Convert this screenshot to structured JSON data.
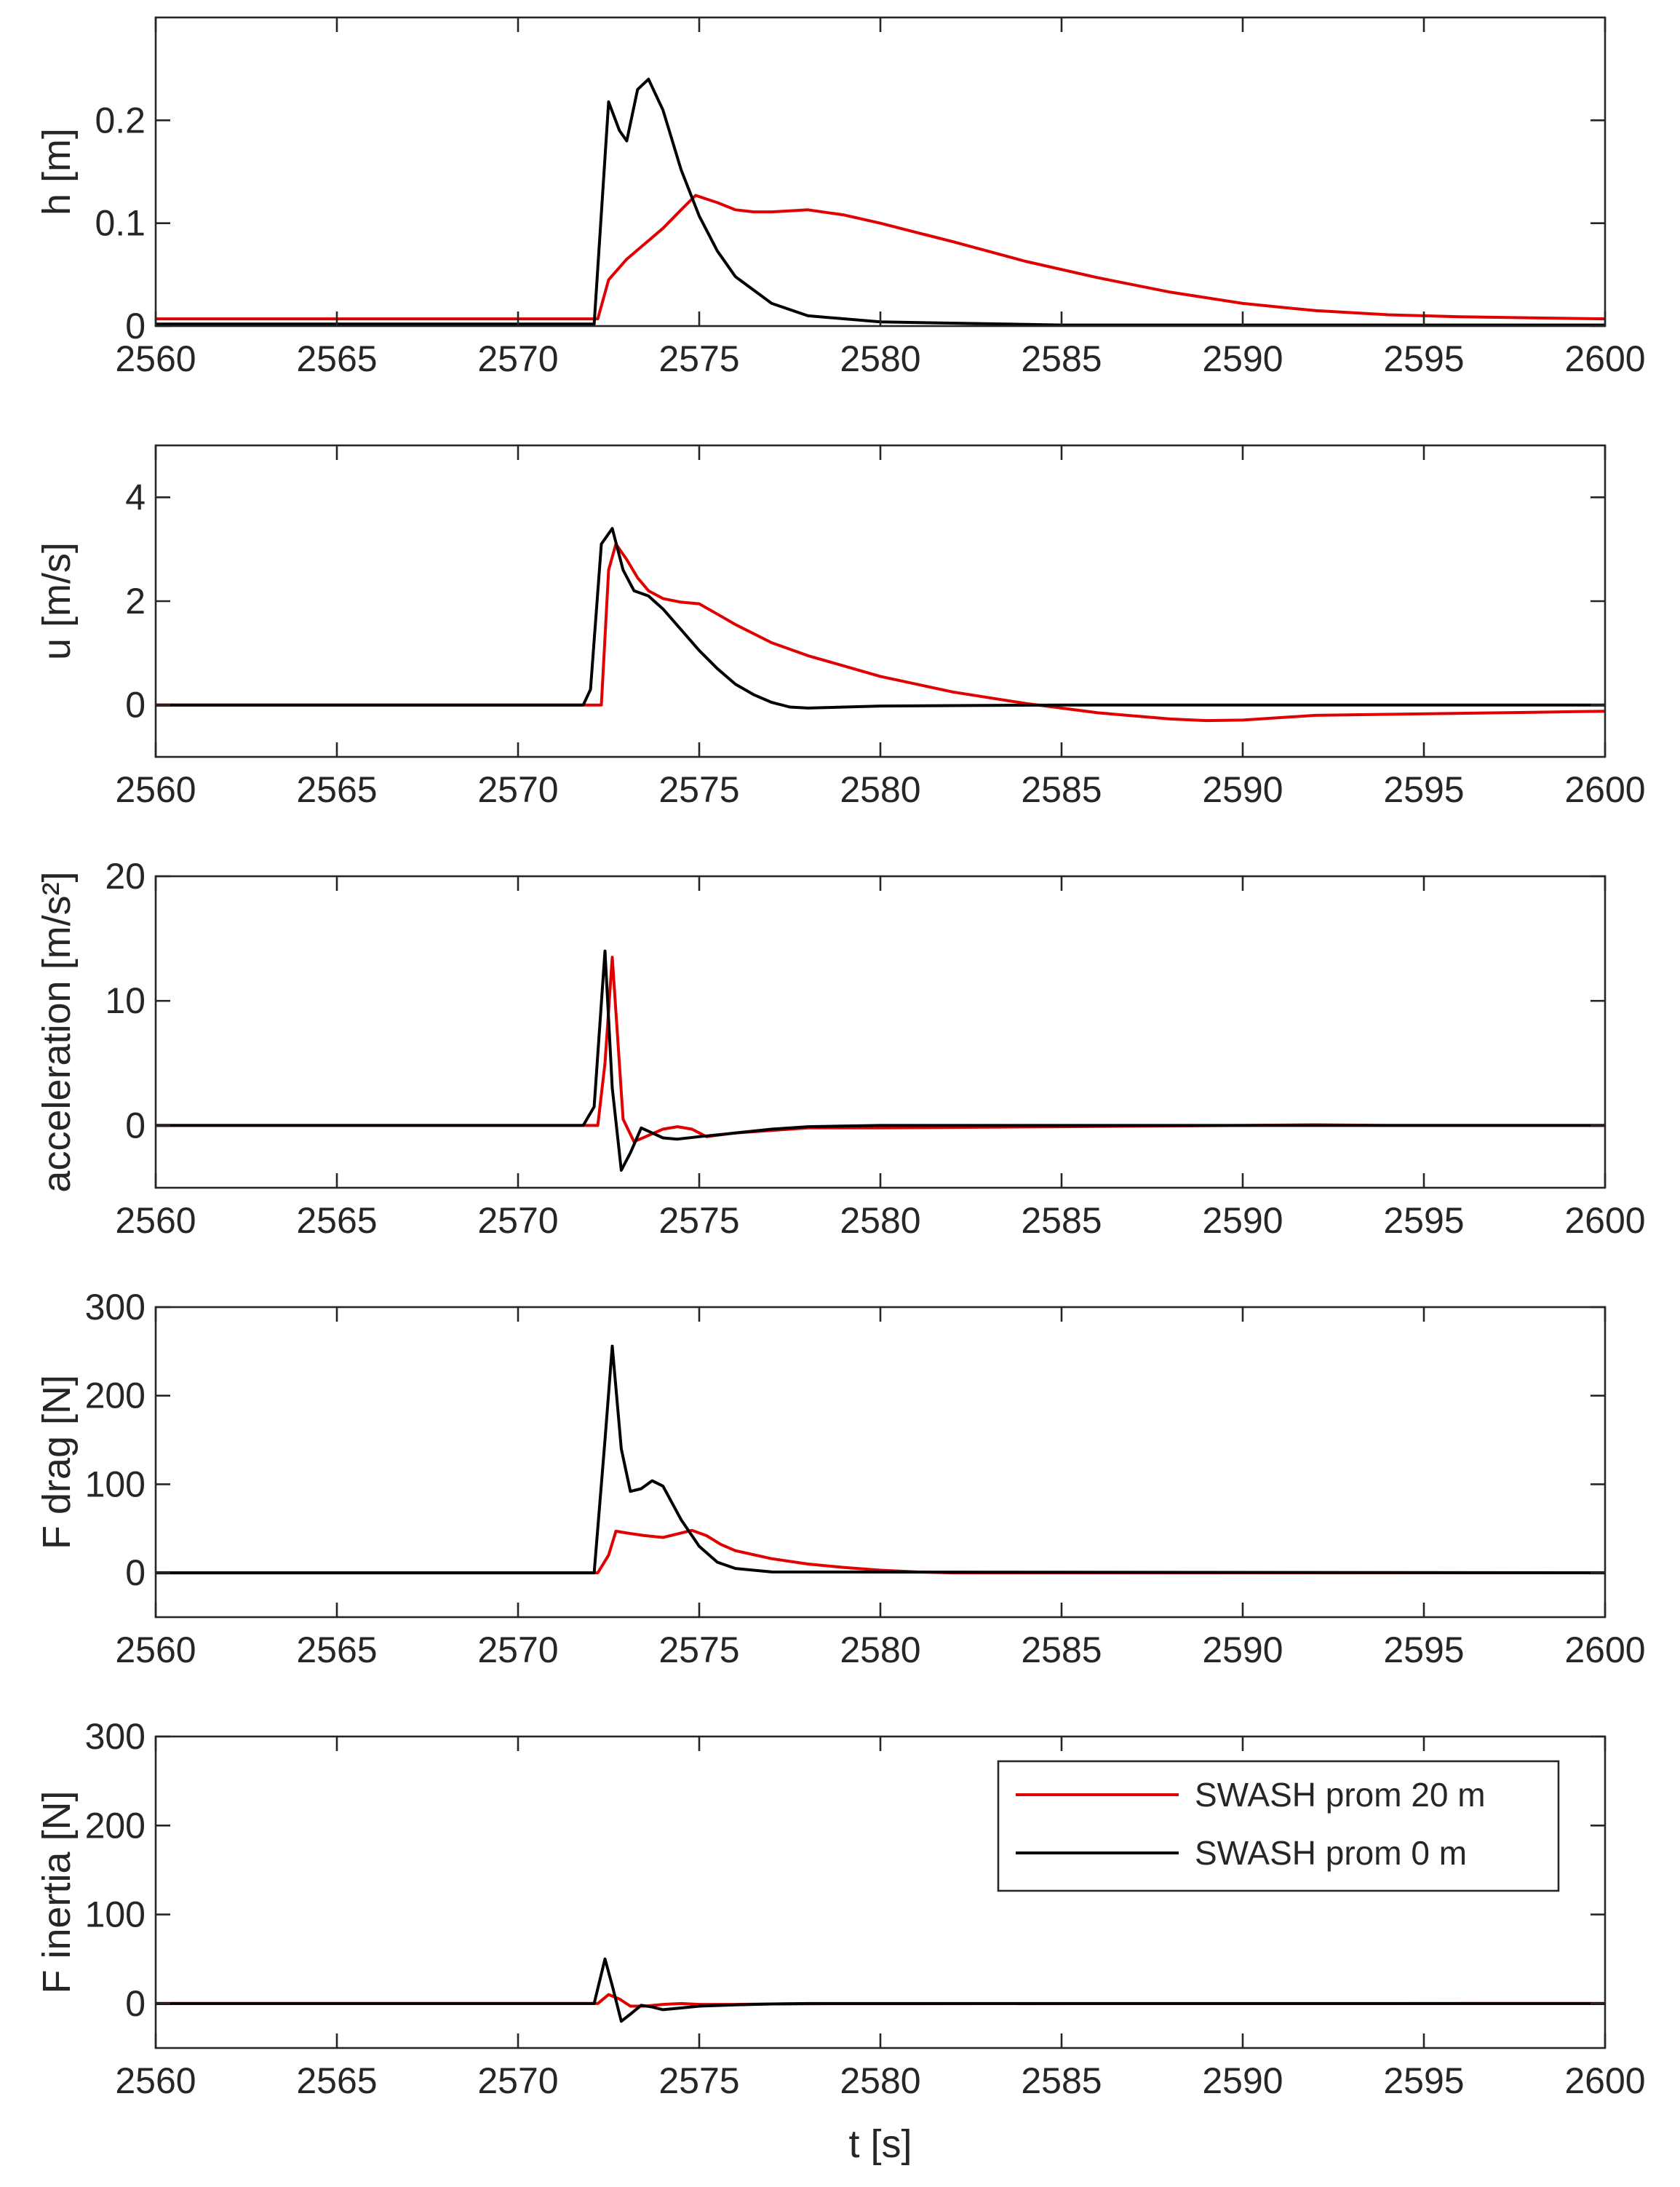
{
  "colors": {
    "red": "#e00000",
    "black": "#000000",
    "axis": "#262626"
  },
  "chart_data": [
    {
      "type": "line",
      "ylabel": "h [m]",
      "xlabel": "",
      "xlim": [
        2560,
        2600
      ],
      "ylim": [
        0,
        0.3
      ],
      "xticks": [
        "2560",
        "2565",
        "2570",
        "2575",
        "2580",
        "2585",
        "2590",
        "2595",
        "2600"
      ],
      "yticks": [
        {
          "v": 0,
          "label": "0"
        },
        {
          "v": 0.1,
          "label": "0.1"
        },
        {
          "v": 0.2,
          "label": "0.2"
        }
      ],
      "series": [
        {
          "name": "SWASH prom 20 m",
          "color": "#e00000",
          "x": [
            2560,
            2572.2,
            2572.5,
            2573,
            2573.5,
            2574,
            2574.5,
            2574.9,
            2575.5,
            2576,
            2576.5,
            2577,
            2577.5,
            2578,
            2579,
            2580,
            2582,
            2584,
            2586,
            2588,
            2590,
            2592,
            2594,
            2596,
            2598,
            2600
          ],
          "y": [
            0.007,
            0.007,
            0.045,
            0.065,
            0.08,
            0.095,
            0.113,
            0.127,
            0.12,
            0.113,
            0.111,
            0.111,
            0.112,
            0.113,
            0.108,
            0.1,
            0.082,
            0.063,
            0.047,
            0.033,
            0.022,
            0.015,
            0.011,
            0.009,
            0.008,
            0.007
          ]
        },
        {
          "name": "SWASH prom 0 m",
          "color": "#000000",
          "x": [
            2560,
            2572.1,
            2572.5,
            2572.8,
            2573,
            2573.3,
            2573.6,
            2574,
            2574.5,
            2575,
            2575.5,
            2576,
            2577,
            2578,
            2580,
            2585,
            2590,
            2600
          ],
          "y": [
            0.002,
            0.002,
            0.218,
            0.19,
            0.18,
            0.23,
            0.24,
            0.21,
            0.152,
            0.107,
            0.073,
            0.048,
            0.022,
            0.01,
            0.004,
            0.001,
            0.001,
            0.001
          ]
        }
      ]
    },
    {
      "type": "line",
      "ylabel": "u [m/s]",
      "xlabel": "",
      "xlim": [
        2560,
        2600
      ],
      "ylim": [
        -1,
        5
      ],
      "xticks": [
        "2560",
        "2565",
        "2570",
        "2575",
        "2580",
        "2585",
        "2590",
        "2595",
        "2600"
      ],
      "yticks": [
        {
          "v": 0,
          "label": "0"
        },
        {
          "v": 2,
          "label": "2"
        },
        {
          "v": 4,
          "label": "4"
        }
      ],
      "series": [
        {
          "name": "SWASH prom 20 m",
          "color": "#e00000",
          "x": [
            2560,
            2572.1,
            2572.3,
            2572.5,
            2572.7,
            2573,
            2573.3,
            2573.6,
            2574,
            2574.5,
            2575,
            2575.5,
            2576,
            2577,
            2578,
            2580,
            2582,
            2584,
            2586,
            2588,
            2589,
            2590,
            2592,
            2594,
            2596,
            2598,
            2600
          ],
          "y": [
            0,
            0,
            0,
            2.6,
            3.1,
            2.8,
            2.45,
            2.2,
            2.05,
            1.98,
            1.95,
            1.75,
            1.55,
            1.2,
            0.95,
            0.55,
            0.25,
            0.03,
            -0.15,
            -0.27,
            -0.3,
            -0.29,
            -0.2,
            -0.18,
            -0.16,
            -0.14,
            -0.12
          ]
        },
        {
          "name": "SWASH prom 0 m",
          "color": "#000000",
          "x": [
            2560,
            2571.8,
            2572,
            2572.3,
            2572.6,
            2572.9,
            2573.2,
            2573.6,
            2574,
            2574.5,
            2575,
            2575.5,
            2576,
            2576.5,
            2577,
            2577.5,
            2578,
            2579,
            2580,
            2585,
            2600
          ],
          "y": [
            0,
            0,
            0.3,
            3.1,
            3.4,
            2.6,
            2.2,
            2.1,
            1.85,
            1.45,
            1.05,
            0.7,
            0.4,
            0.2,
            0.05,
            -0.04,
            -0.06,
            -0.04,
            -0.02,
            0,
            0
          ]
        }
      ]
    },
    {
      "type": "line",
      "ylabel": "acceleration [m/s²]",
      "xlabel": "",
      "xlim": [
        2560,
        2600
      ],
      "ylim": [
        -5,
        20
      ],
      "xticks": [
        "2560",
        "2565",
        "2570",
        "2575",
        "2580",
        "2585",
        "2590",
        "2595",
        "2600"
      ],
      "yticks": [
        {
          "v": 0,
          "label": "0"
        },
        {
          "v": 10,
          "label": "10"
        },
        {
          "v": 20,
          "label": "20"
        }
      ],
      "series": [
        {
          "name": "SWASH prom 20 m",
          "color": "#e00000",
          "x": [
            2560,
            2572.2,
            2572.4,
            2572.6,
            2572.9,
            2573.2,
            2573.6,
            2574,
            2574.4,
            2574.8,
            2575.2,
            2576,
            2577,
            2578,
            2580,
            2585,
            2590,
            2592,
            2594,
            2600
          ],
          "y": [
            0,
            0,
            5,
            13.5,
            0.5,
            -1.3,
            -0.8,
            -0.3,
            -0.1,
            -0.3,
            -0.9,
            -0.6,
            -0.4,
            -0.2,
            -0.2,
            -0.1,
            0,
            0.05,
            0,
            0
          ]
        },
        {
          "name": "SWASH prom 0 m",
          "color": "#000000",
          "x": [
            2560,
            2571.8,
            2572.1,
            2572.4,
            2572.6,
            2572.85,
            2573.1,
            2573.4,
            2573.7,
            2574,
            2574.4,
            2575,
            2576,
            2577,
            2578,
            2580,
            2600
          ],
          "y": [
            0,
            0,
            1.5,
            14,
            3,
            -3.6,
            -2.2,
            -0.2,
            -0.6,
            -1.0,
            -1.1,
            -0.9,
            -0.6,
            -0.3,
            -0.1,
            0,
            0
          ]
        }
      ]
    },
    {
      "type": "line",
      "ylabel": "F drag [N]",
      "xlabel": "",
      "xlim": [
        2560,
        2600
      ],
      "ylim": [
        -50,
        300
      ],
      "xticks": [
        "2560",
        "2565",
        "2570",
        "2575",
        "2580",
        "2585",
        "2590",
        "2595",
        "2600"
      ],
      "yticks": [
        {
          "v": 0,
          "label": "0"
        },
        {
          "v": 100,
          "label": "100"
        },
        {
          "v": 200,
          "label": "200"
        },
        {
          "v": 300,
          "label": "300"
        }
      ],
      "series": [
        {
          "name": "SWASH prom 20 m",
          "color": "#e00000",
          "x": [
            2560,
            2572.2,
            2572.5,
            2572.7,
            2573,
            2573.5,
            2574,
            2574.5,
            2574.8,
            2575.2,
            2575.6,
            2576,
            2577,
            2578,
            2579,
            2580,
            2581,
            2582,
            2600
          ],
          "y": [
            0,
            0,
            20,
            47,
            45,
            42,
            40,
            45,
            48,
            42,
            32,
            25,
            16,
            10,
            6,
            3,
            1,
            0,
            0
          ]
        },
        {
          "name": "SWASH prom 0 m",
          "color": "#000000",
          "x": [
            2560,
            2572.1,
            2572.4,
            2572.6,
            2572.85,
            2573.1,
            2573.4,
            2573.7,
            2574,
            2574.5,
            2575,
            2575.5,
            2576,
            2577,
            2600
          ],
          "y": [
            0,
            0,
            150,
            256,
            140,
            92,
            95,
            104,
            98,
            60,
            30,
            12,
            5,
            1,
            0
          ]
        }
      ]
    },
    {
      "type": "line",
      "ylabel": "F inertia [N]",
      "xlabel": "t [s]",
      "xlim": [
        2560,
        2600
      ],
      "ylim": [
        -50,
        300
      ],
      "xticks": [
        "2560",
        "2565",
        "2570",
        "2575",
        "2580",
        "2585",
        "2590",
        "2595",
        "2600"
      ],
      "yticks": [
        {
          "v": 0,
          "label": "0"
        },
        {
          "v": 100,
          "label": "100"
        },
        {
          "v": 200,
          "label": "200"
        },
        {
          "v": 300,
          "label": "300"
        }
      ],
      "legend": {
        "placement": "top-right",
        "entries": [
          "SWASH prom 20 m",
          "SWASH prom 0 m"
        ]
      },
      "series": [
        {
          "name": "SWASH prom 20 m",
          "color": "#e00000",
          "x": [
            2560,
            2572.2,
            2572.5,
            2572.8,
            2573.1,
            2573.5,
            2574,
            2574.5,
            2575,
            2576,
            2577,
            2578,
            2580,
            2600
          ],
          "y": [
            0,
            0,
            10,
            5,
            -3,
            -3,
            -1,
            0,
            -1,
            -1,
            -0.5,
            -0.3,
            -0.2,
            0
          ]
        },
        {
          "name": "SWASH prom 0 m",
          "color": "#000000",
          "x": [
            2560,
            2572.1,
            2572.4,
            2572.6,
            2572.85,
            2573.1,
            2573.4,
            2573.7,
            2574,
            2574.5,
            2575,
            2576,
            2577,
            2578,
            2600
          ],
          "y": [
            0,
            0,
            50,
            20,
            -20,
            -12,
            -2,
            -4,
            -7,
            -5,
            -3,
            -1.5,
            -0.5,
            0,
            0
          ]
        }
      ]
    }
  ]
}
